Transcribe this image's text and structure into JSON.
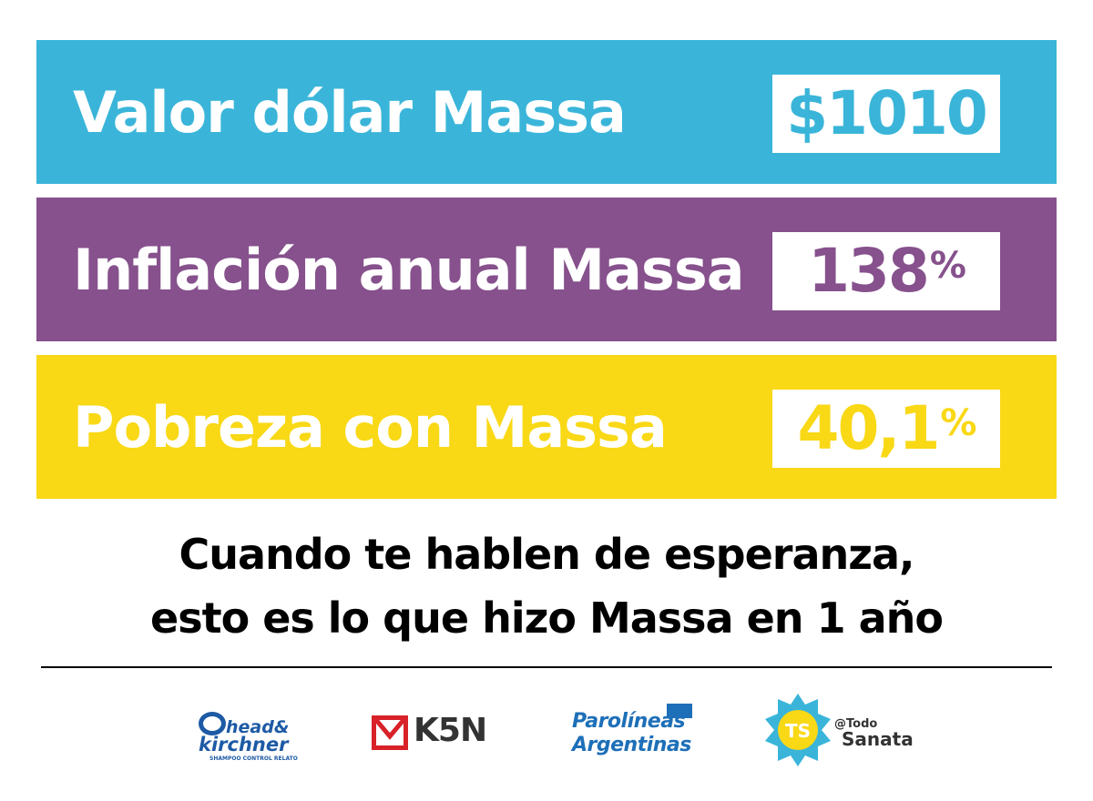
{
  "rows": [
    {
      "label": "Valor dólar Massa",
      "value": "$1010",
      "suffix": "",
      "color": "#3ab5d9"
    },
    {
      "label": "Inflación anual Massa",
      "value": "138",
      "suffix": "%",
      "color": "#86518c"
    },
    {
      "label": "Pobreza con Massa",
      "value": "40,1",
      "suffix": "%",
      "color": "#f9d816"
    }
  ],
  "slogan": {
    "line1": "Cuando te hablen de esperanza,",
    "line2": "esto es lo que hizo Massa en 1 año"
  },
  "logos": {
    "head_kirchner": {
      "line1": "head&",
      "line2": "kirchner",
      "tagline": "SHAMPOO CONTROL RELATO",
      "color": "#1d5aa5"
    },
    "k5n": {
      "text": "K5N",
      "accent": "#d82128"
    },
    "parolineas": {
      "line1": "Parolíneas",
      "line2": "Argentinas",
      "color": "#1d6fb8"
    },
    "todo_sanata": {
      "badge": "TS",
      "handle": "@Todo",
      "name": "Sanata",
      "badge_color": "#3ab5d9"
    }
  }
}
